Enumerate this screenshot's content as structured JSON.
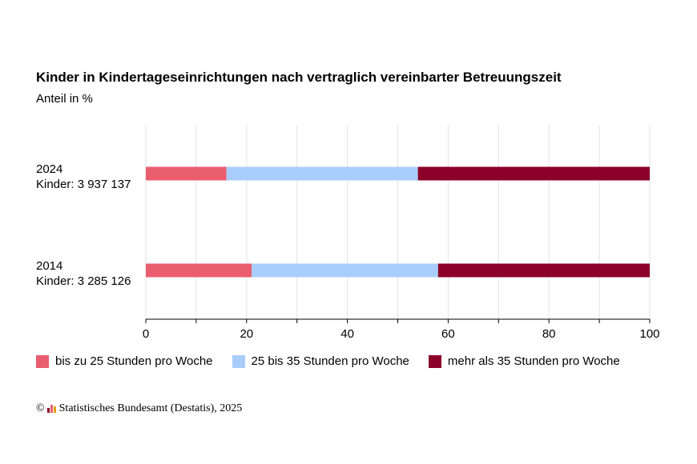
{
  "chart_data": {
    "type": "bar",
    "orientation": "horizontal",
    "stacked": true,
    "title": "Kinder in Kindertageseinrichtungen nach vertraglich vereinbarter Betreuungszeit",
    "subtitle": "Anteil in %",
    "categories": [
      {
        "year": "2024",
        "count": "Kinder: 3 937 137"
      },
      {
        "year": "2014",
        "count": "Kinder: 3 285 126"
      }
    ],
    "series": [
      {
        "name": "bis zu 25 Stunden pro Woche",
        "color": "#e95d6f",
        "values": [
          16,
          21
        ]
      },
      {
        "name": "25 bis 35 Stunden pro Woche",
        "color": "#a9cdfb",
        "values": [
          38,
          37
        ]
      },
      {
        "name": "mehr als 35 Stunden pro Woche",
        "color": "#8b002a",
        "values": [
          46,
          42
        ]
      }
    ],
    "xlim": [
      0,
      100
    ],
    "xticks": [
      "0",
      "20",
      "40",
      "60",
      "80",
      "100"
    ],
    "grid": true,
    "legend_position": "bottom"
  },
  "source": {
    "copyright": "©",
    "text": "Statistisches Bundesamt (Destatis), 2025"
  }
}
